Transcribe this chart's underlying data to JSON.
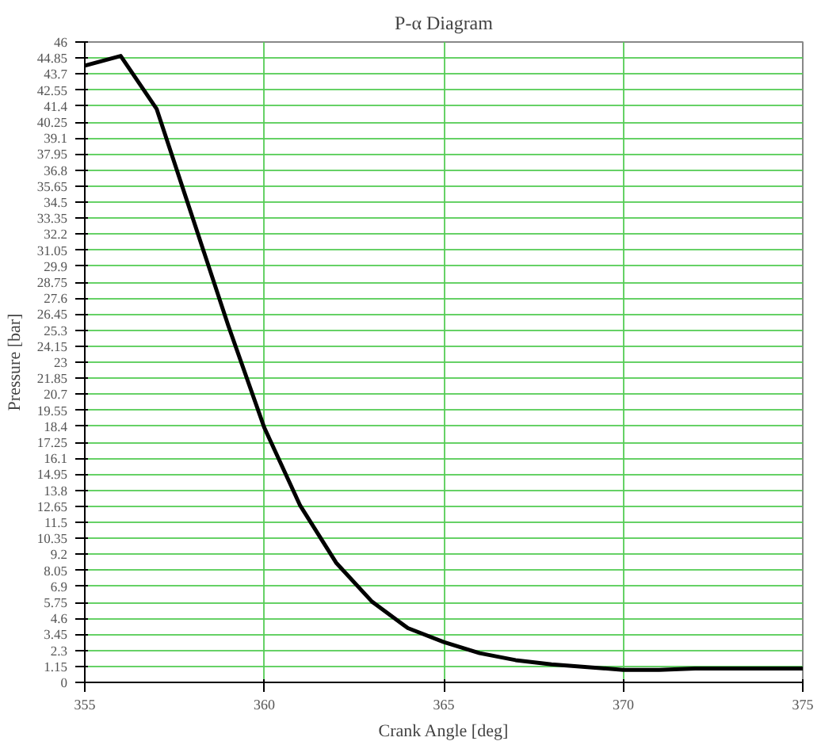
{
  "chart_data": {
    "type": "line",
    "title": "P-α Diagram",
    "xlabel": "Crank Angle [deg]",
    "ylabel": "Pressure [bar]",
    "x": [
      355,
      356,
      357,
      358,
      359,
      360,
      361,
      362,
      363,
      364,
      365,
      366,
      367,
      368,
      369,
      370,
      371,
      372,
      373,
      374,
      375
    ],
    "series": [
      {
        "color": "#000000",
        "values": [
          44.3,
          45.0,
          41.2,
          33.4,
          25.6,
          18.3,
          12.7,
          8.6,
          5.8,
          3.9,
          2.9,
          2.1,
          1.6,
          1.3,
          1.1,
          0.9,
          0.9,
          1.0,
          1.0,
          1.0,
          1.0
        ]
      }
    ],
    "xlim": [
      355,
      375
    ],
    "ylim": [
      0,
      46
    ],
    "xticks": [
      355,
      360,
      365,
      370,
      375
    ],
    "yticks": [
      0,
      1.15,
      2.3,
      3.45,
      4.6,
      5.75,
      6.9,
      8.05,
      9.2,
      10.35,
      11.5,
      12.65,
      13.8,
      14.95,
      16.1,
      17.25,
      18.4,
      19.55,
      20.7,
      21.85,
      23,
      24.15,
      25.3,
      26.45,
      27.6,
      28.75,
      29.9,
      31.05,
      32.2,
      33.35,
      34.5,
      35.65,
      36.8,
      37.95,
      39.1,
      40.25,
      41.4,
      42.55,
      43.7,
      44.85,
      46
    ],
    "grid": true,
    "marker": "none",
    "line_style": "solid"
  }
}
